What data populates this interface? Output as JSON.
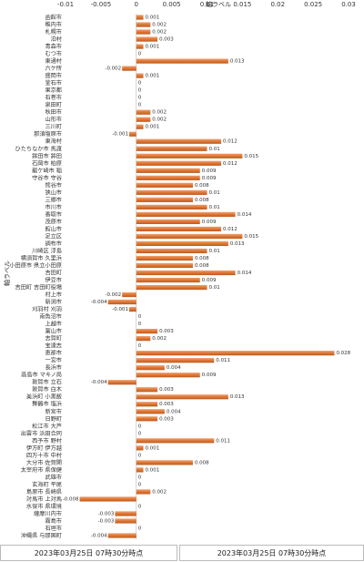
{
  "chart_data": {
    "type": "hbar",
    "x_label": "軸ラベル",
    "y_label": "軸ラベル",
    "color": "#e07632",
    "xlim": [
      -0.01,
      0.03
    ],
    "xticks": [
      -0.01,
      -0.005,
      0,
      0.005,
      0.01,
      0.015,
      0.02,
      0.025,
      0.03
    ],
    "grid": false,
    "categories": [
      "函館市",
      "稚内市",
      "札幌市",
      "泊村",
      "青森市",
      "むつ市",
      "東通村",
      "六ケ所",
      "盛岡市",
      "釜石市",
      "果京都",
      "石巻市",
      "泉田町",
      "秋田市",
      "山形市",
      "三川町",
      "那須塩原市",
      "東海村",
      "ひたちなか市 馬渡",
      "鉾田市 鉾田",
      "石岡市 柏原",
      "龍ケ崎市 稲",
      "守谷市 守谷",
      "熊谷市",
      "狭山市",
      "三郷市",
      "市川市",
      "香取市",
      "茂原市",
      "館山市",
      "足立区",
      "調布市",
      "川崎区 浮島",
      "横須賀市 久里浜",
      "小田原市 県立小田原",
      "吉田町",
      "伊豆市",
      "吉田町 吉田町役場",
      "村上市",
      "新潟市",
      "刈羽村 刈羽",
      "南魚沼市",
      "上越市",
      "富山市",
      "志賀町",
      "宝達志",
      "恵那市",
      "一宮市",
      "長浜市",
      "高島市 マキノ局",
      "敦賀市 立石",
      "敦賀市 白木",
      "美浜町 小黒飯",
      "舞鶴市 塩浜",
      "新宮市",
      "日野町",
      "松江市 大芦",
      "出雲市 浜田合同",
      "西予市 野村",
      "伊方町 伊方越",
      "四万十市 中村",
      "大分市 佐賀関",
      "太宰府市 県保健",
      "武雄市",
      "玄海町 平尾",
      "島原市 長崎県",
      "対馬市 上対馬",
      "水俣市 県環境",
      "薩摩川内市",
      "霧島市",
      "石垣市",
      "沖縄県 与那国町"
    ],
    "values": [
      0.001,
      0.002,
      0.002,
      0.003,
      0.001,
      0,
      0.013,
      -0.002,
      0.001,
      0,
      0,
      0,
      0,
      0.002,
      0.002,
      0.001,
      -0.001,
      0.012,
      0.01,
      0.015,
      0.012,
      0.009,
      0.009,
      0.008,
      0.01,
      0.008,
      0.01,
      0.014,
      0.009,
      0.012,
      0.015,
      0.013,
      0.01,
      0.008,
      0.008,
      0.014,
      0.009,
      0.01,
      -0.002,
      -0.004,
      -0.001,
      0,
      0,
      0.003,
      0.002,
      0,
      0.028,
      0.011,
      0.004,
      0.009,
      -0.004,
      0.003,
      0.013,
      0.003,
      0.004,
      0.003,
      0,
      0,
      0.011,
      0.001,
      0,
      0.008,
      0.001,
      0,
      0,
      0.002,
      -0.008,
      0,
      -0.003,
      -0.003,
      0,
      -0.004
    ]
  },
  "footer": [
    "2023年03月25日 07時30分時点",
    "2023年03月25日 07時30分時点"
  ]
}
